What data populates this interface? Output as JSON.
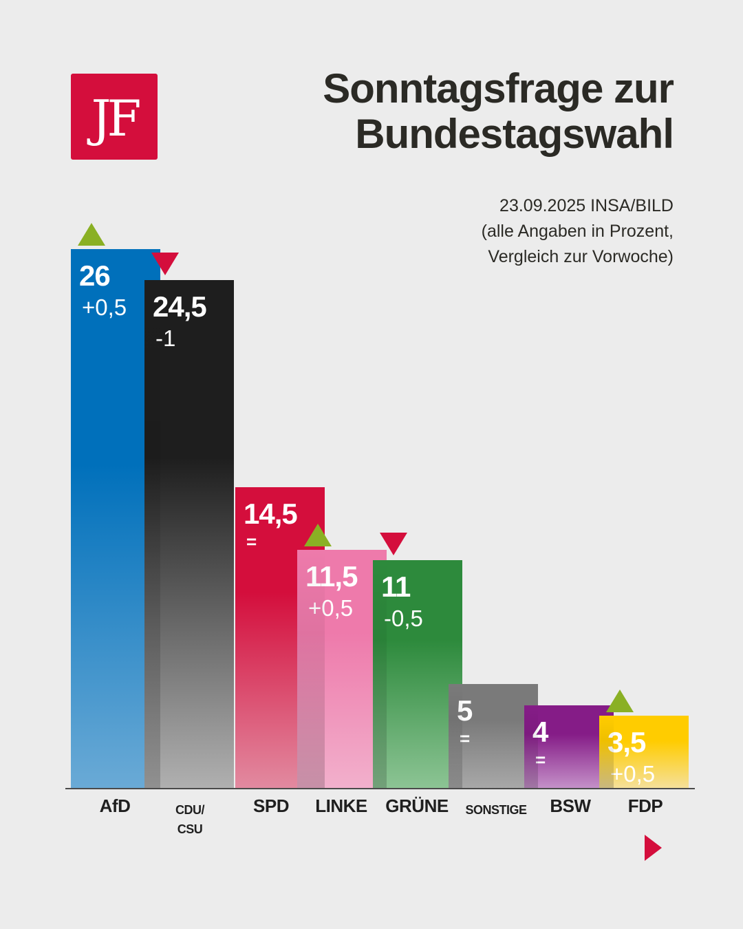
{
  "header": {
    "logo_text": "JF",
    "title_line1": "Sonntagsfrage zur",
    "title_line2": "Bundestagswahl",
    "subtitle_line1": "23.09.2025 INSA/BILD",
    "subtitle_line2": "(alle Angaben in Prozent,",
    "subtitle_line3": "Vergleich zur Vorwoche)"
  },
  "chart_data": {
    "type": "bar",
    "title": "Sonntagsfrage zur Bundestagswahl",
    "subtitle": "23.09.2025 INSA/BILD (alle Angaben in Prozent, Vergleich zur Vorwoche)",
    "xlabel": "",
    "ylabel": "Prozent",
    "ylim": [
      0,
      26
    ],
    "grid": false,
    "legend": "none",
    "categories": [
      "AfD",
      "CDU/\nCSU",
      "SPD",
      "LINKE",
      "GRÜNE",
      "SONSTIGE",
      "BSW",
      "FDP"
    ],
    "values": [
      26,
      24.5,
      14.5,
      11.5,
      11,
      5,
      4,
      3.5
    ],
    "value_labels": [
      "26",
      "24,5",
      "14,5",
      "11,5",
      "11",
      "5",
      "4",
      "3,5"
    ],
    "changes": [
      0.5,
      -1,
      0,
      0.5,
      -0.5,
      0,
      0,
      0.5
    ],
    "change_labels": [
      "+0,5",
      "-1",
      "=",
      "+0,5",
      "-0,5",
      "=",
      "=",
      "+0,5"
    ],
    "trend": [
      "up",
      "down",
      "none",
      "up",
      "down",
      "none",
      "none",
      "up"
    ],
    "colors": [
      "#0070bb",
      "#1e1e1e",
      "#d40e3c",
      "#ee7aab",
      "#2d8a3c",
      "#7a7a7a",
      "#851c87",
      "#ffcc00"
    ],
    "colors_bottom": [
      "#6aaad6",
      "#b0b0b0",
      "#e28aa0",
      "#f2b0cc",
      "#8cc494",
      "#a8a8a8",
      "#c490c8",
      "#f5e09a"
    ],
    "trend_colors": {
      "up": "#8ab024",
      "down": "#d40e3c"
    }
  },
  "nav": {
    "next_icon": "triangle-right"
  }
}
